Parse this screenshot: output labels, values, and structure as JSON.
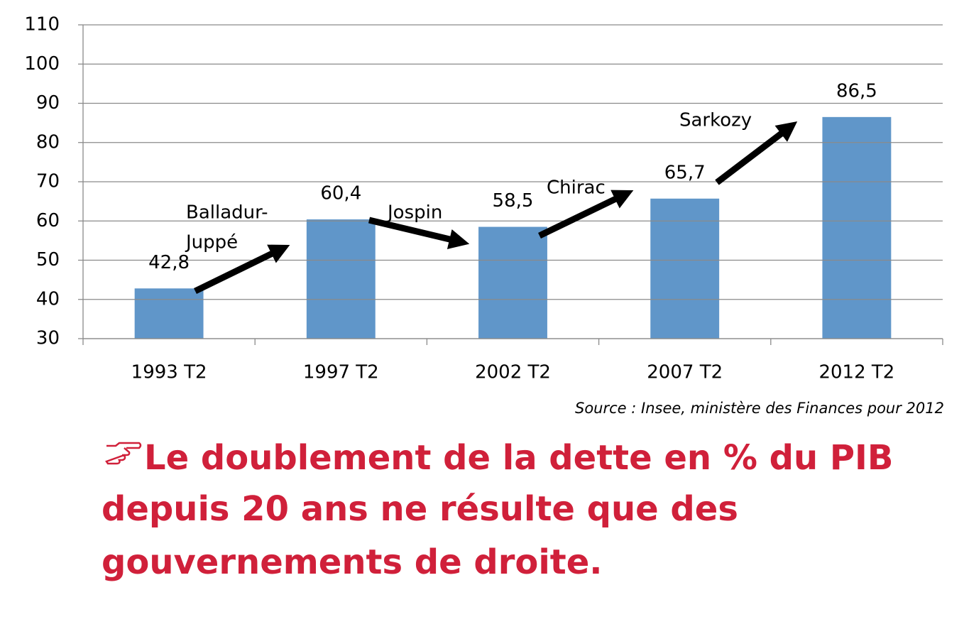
{
  "chart_data": {
    "type": "bar",
    "categories": [
      "1993 T2",
      "1997 T2",
      "2002 T2",
      "2007 T2",
      "2012 T2"
    ],
    "values": [
      42.8,
      60.4,
      58.5,
      65.7,
      86.5
    ],
    "value_labels": [
      "42,8",
      "60,4",
      "58,5",
      "65,7",
      "86,5"
    ],
    "color": "#6096c9",
    "ylim": [
      30,
      110
    ],
    "yticks": [
      30,
      40,
      50,
      60,
      70,
      80,
      90,
      100,
      110
    ],
    "grid": true,
    "annotations": [
      "Balladur-",
      "Juppé",
      "Jospin",
      "Chirac",
      "Sarkozy"
    ],
    "source": "Source : Insee, ministère des Finances pour 2012"
  },
  "conclusion": [
    "Le doublement de la dette en % du PIB",
    "depuis 20 ans ne résulte que des",
    "gouvernements de droite."
  ]
}
